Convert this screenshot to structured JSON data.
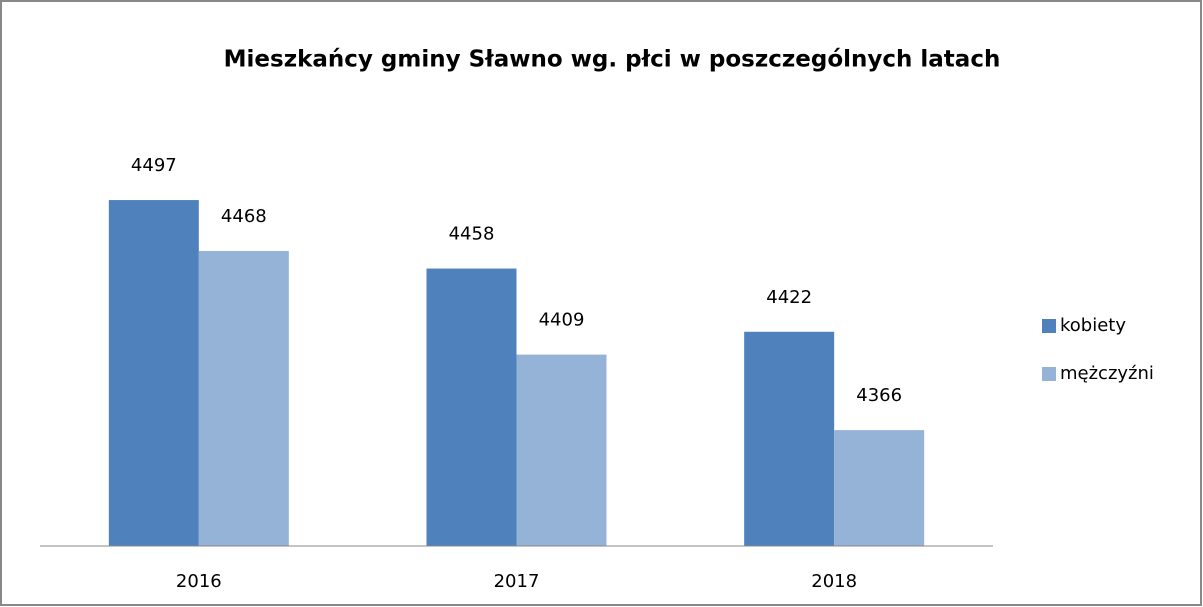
{
  "chart_data": {
    "type": "bar",
    "title": "Mieszkańcy gminy Sławno wg. płci w poszczególnych latach",
    "categories": [
      "2016",
      "2017",
      "2018"
    ],
    "series": [
      {
        "name": "kobiety",
        "color": "#4f81bd",
        "values": [
          4497,
          4458,
          4422
        ]
      },
      {
        "name": "mężczyźni",
        "color": "#95b3d7",
        "values": [
          4468,
          4409,
          4366
        ]
      }
    ],
    "ylim": [
      4300,
      4550
    ],
    "legend": "right"
  }
}
